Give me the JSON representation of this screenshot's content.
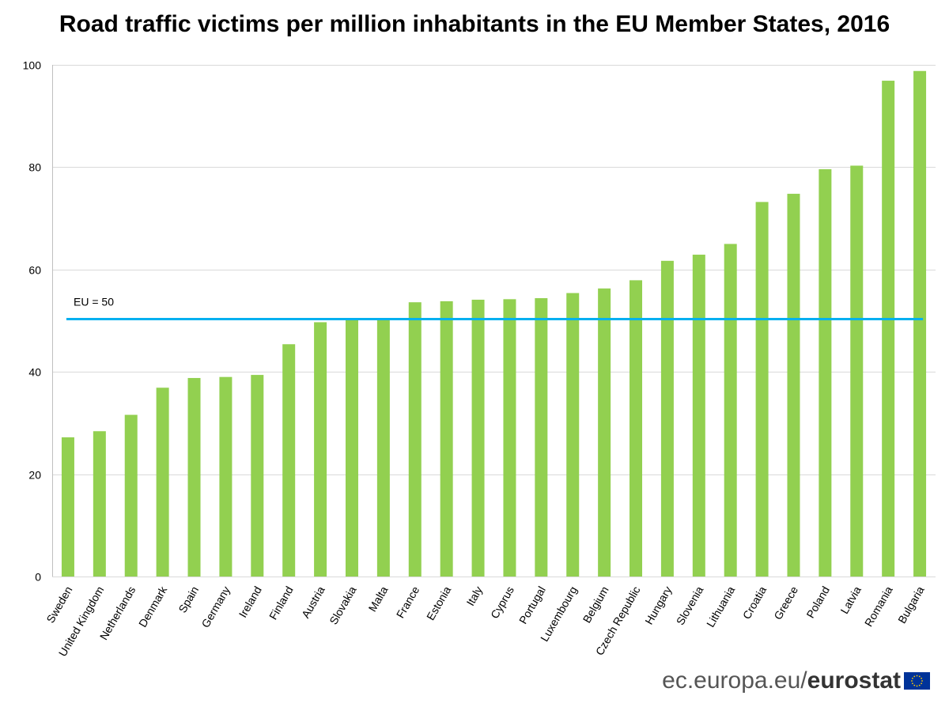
{
  "chart_data": {
    "type": "bar",
    "title": "Road traffic victims per million inhabitants in the EU Member States, 2016",
    "xlabel": "",
    "ylabel": "",
    "ylim": [
      0,
      100
    ],
    "yticks": [
      0,
      20,
      40,
      60,
      80,
      100
    ],
    "grid": true,
    "bar_color": "#92d050",
    "categories": [
      "Sweden",
      "United Kingdom",
      "Netherlands",
      "Denmark",
      "Spain",
      "Germany",
      "Ireland",
      "Finland",
      "Austria",
      "Slovakia",
      "Malta",
      "France",
      "Estonia",
      "Italy",
      "Cyprus",
      "Portugal",
      "Luxembourg",
      "Belgium",
      "Czech Republic",
      "Hungary",
      "Slovenia",
      "Lithuania",
      "Croatia",
      "Greece",
      "Poland",
      "Latvia",
      "Romania",
      "Bulgaria"
    ],
    "values": [
      27.2,
      28.4,
      31.6,
      36.9,
      38.8,
      39.0,
      39.4,
      45.4,
      49.7,
      50.1,
      50.3,
      53.6,
      53.8,
      54.1,
      54.2,
      54.4,
      55.4,
      56.3,
      57.9,
      61.7,
      62.9,
      65.0,
      73.2,
      74.8,
      79.6,
      80.3,
      96.9,
      98.8
    ],
    "reference_line": {
      "value": 50,
      "label": "EU = 50",
      "color": "#00b0f0"
    }
  },
  "footer": {
    "domain": "ec.europa.eu/",
    "brand": "eurostat"
  }
}
